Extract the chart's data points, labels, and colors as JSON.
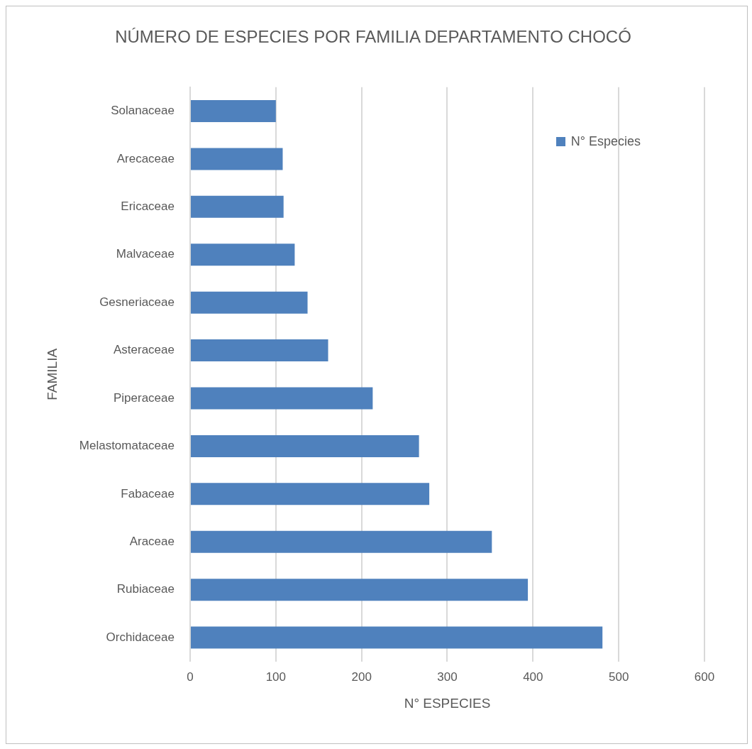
{
  "chart_data": {
    "type": "bar",
    "orientation": "horizontal",
    "title": "NÚMERO DE ESPECIES POR FAMILIA DEPARTAMENTO CHOCÓ",
    "xlabel": "N° ESPECIES",
    "ylabel": "FAMILIA",
    "categories": [
      "Solanaceae",
      "Arecaceae",
      "Ericaceae",
      "Malvaceae",
      "Gesneriaceae",
      "Asteraceae",
      "Piperaceae",
      "Melastomataceae",
      "Fabaceae",
      "Araceae",
      "Rubiaceae",
      "Orchidaceae"
    ],
    "series": [
      {
        "name": "N° Especies",
        "color": "#4f81bd",
        "values": [
          100,
          108,
          109,
          122,
          137,
          161,
          213,
          267,
          279,
          352,
          394,
          481
        ]
      }
    ],
    "xlim": [
      0,
      600
    ],
    "xticks": [
      0,
      100,
      200,
      300,
      400,
      500,
      600
    ],
    "grid": "x",
    "legend": "top right"
  }
}
